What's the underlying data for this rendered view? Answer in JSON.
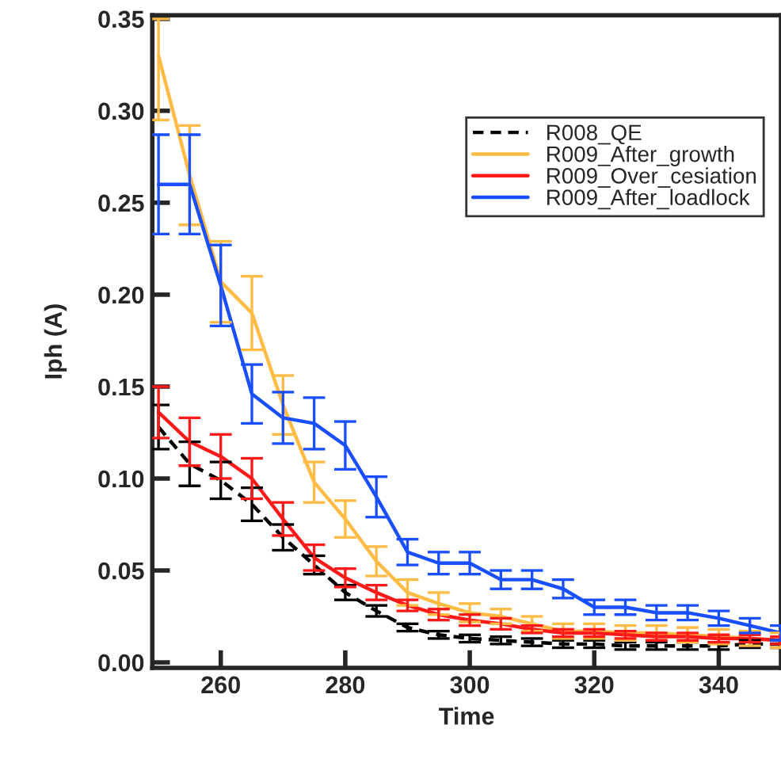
{
  "chart_data": {
    "type": "line",
    "xlabel": "Time",
    "ylabel": "Iph (A)",
    "x": [
      250,
      255,
      260,
      265,
      270,
      275,
      280,
      285,
      290,
      295,
      300,
      305,
      310,
      315,
      320,
      325,
      330,
      335,
      340,
      345,
      350
    ],
    "series": [
      {
        "name": "R008_QE",
        "color": "#000000",
        "line_style": "dashed",
        "values": [
          0.128,
          0.108,
          0.099,
          0.086,
          0.068,
          0.053,
          0.038,
          0.028,
          0.019,
          0.015,
          0.013,
          0.012,
          0.011,
          0.01,
          0.01,
          0.009,
          0.009,
          0.009,
          0.009,
          0.01,
          0.01
        ],
        "errors": [
          0.012,
          0.012,
          0.01,
          0.009,
          0.007,
          0.005,
          0.004,
          0.003,
          0.002,
          0.002,
          0.002,
          0.002,
          0.002,
          0.002,
          0.002,
          0.002,
          0.002,
          0.002,
          0.002,
          0.002,
          0.002
        ]
      },
      {
        "name": "R009_After_growth",
        "color": "#ffbb44",
        "line_style": "solid",
        "values": [
          0.33,
          0.265,
          0.207,
          0.19,
          0.14,
          0.098,
          0.078,
          0.055,
          0.038,
          0.032,
          0.027,
          0.025,
          0.021,
          0.017,
          0.017,
          0.016,
          0.016,
          0.015,
          0.014,
          0.013,
          0.012
        ],
        "errors": [
          [
            0.295,
            0.35
          ],
          0.027,
          0.022,
          0.02,
          0.016,
          0.011,
          0.01,
          0.008,
          0.007,
          0.006,
          0.005,
          0.004,
          0.004,
          0.004,
          0.004,
          0.004,
          0.004,
          0.004,
          0.004,
          0.004,
          0.004
        ]
      },
      {
        "name": "R009_Over_cesiation",
        "color": "#ff1a1a",
        "line_style": "solid",
        "values": [
          0.136,
          0.12,
          0.112,
          0.1,
          0.078,
          0.057,
          0.046,
          0.038,
          0.031,
          0.026,
          0.023,
          0.021,
          0.018,
          0.016,
          0.016,
          0.015,
          0.014,
          0.014,
          0.013,
          0.013,
          0.012
        ],
        "errors": [
          0.014,
          0.013,
          0.012,
          0.011,
          0.009,
          0.007,
          0.005,
          0.004,
          0.003,
          0.003,
          0.003,
          0.003,
          0.002,
          0.002,
          0.002,
          0.002,
          0.002,
          0.002,
          0.002,
          0.002,
          0.002
        ]
      },
      {
        "name": "R009_After_loadlock",
        "color": "#1a4fff",
        "line_style": "solid",
        "values": [
          0.26,
          0.26,
          0.205,
          0.146,
          0.133,
          0.13,
          0.118,
          0.09,
          0.06,
          0.054,
          0.054,
          0.045,
          0.045,
          0.04,
          0.03,
          0.03,
          0.027,
          0.027,
          0.024,
          0.02,
          0.016
        ],
        "errors": [
          0.027,
          0.027,
          0.022,
          0.016,
          0.014,
          0.014,
          0.013,
          0.011,
          0.007,
          0.006,
          0.006,
          0.005,
          0.005,
          0.005,
          0.004,
          0.004,
          0.004,
          0.004,
          0.004,
          0.004,
          0.004
        ]
      }
    ],
    "xlim": [
      249,
      350
    ],
    "ylim": [
      -0.003,
      0.352
    ],
    "xticks": [
      260,
      280,
      300,
      320,
      340
    ],
    "yticks": [
      {
        "value": 0,
        "label": "0.00"
      },
      {
        "value": 0.05,
        "label": "0.05"
      },
      {
        "value": 0.1,
        "label": "0.10"
      },
      {
        "value": 0.15,
        "label": "0.15"
      },
      {
        "value": 0.2,
        "label": "0.20"
      },
      {
        "value": 0.25,
        "label": "0.25"
      },
      {
        "value": 0.3,
        "label": "0.30"
      },
      {
        "value": 0.35,
        "label": "0.35"
      }
    ],
    "grid": false,
    "legend": "top right",
    "marker": "none"
  }
}
